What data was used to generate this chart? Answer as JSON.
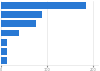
{
  "values": [
    185,
    88,
    75,
    40,
    14,
    12,
    12
  ],
  "bar_color": "#2979d4",
  "background_color": "#ffffff",
  "grid_color": "#dddddd",
  "xlim": [
    0,
    210
  ],
  "figsize": [
    1.0,
    0.71
  ],
  "dpi": 100,
  "bar_height": 0.75
}
